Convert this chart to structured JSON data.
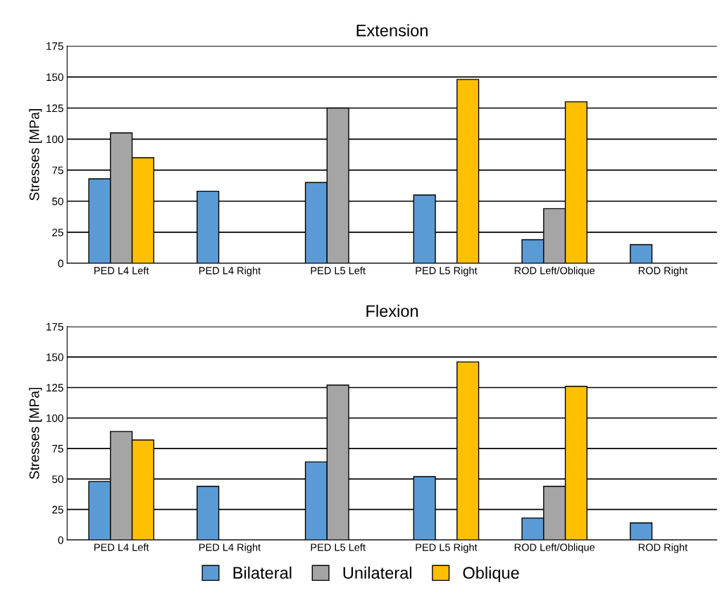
{
  "chart_data": [
    {
      "type": "bar",
      "title": "Extension",
      "ylabel": "Stresses [MPa]",
      "categories": [
        "PED L4 Left",
        "PED L4 Right",
        "PED L5 Left",
        "PED L5 Right",
        "ROD Left/Oblique",
        "ROD Right"
      ],
      "series": [
        {
          "name": "Bilateral",
          "color": "#5b9bd5",
          "values": [
            68,
            58,
            65,
            55,
            19,
            15
          ]
        },
        {
          "name": "Unilateral",
          "color": "#a5a5a5",
          "values": [
            105,
            null,
            125,
            null,
            44,
            null
          ]
        },
        {
          "name": "Oblique",
          "color": "#ffc000",
          "values": [
            85,
            null,
            null,
            148,
            130,
            null
          ]
        }
      ],
      "ylim": [
        0,
        175
      ],
      "yticks": [
        0,
        25,
        50,
        75,
        100,
        125,
        150,
        175
      ],
      "grid": "y",
      "legend": "bottom"
    },
    {
      "type": "bar",
      "title": "Flexion",
      "ylabel": "Stresses [MPa]",
      "categories": [
        "PED L4 Left",
        "PED L4 Right",
        "PED L5 Left",
        "PED L5 Right",
        "ROD Left/Oblique",
        "ROD Right"
      ],
      "series": [
        {
          "color": "#5b9bd5",
          "values": [
            48,
            44,
            64,
            52,
            18,
            14
          ]
        },
        {
          "color": "#a5a5a5",
          "values": [
            89,
            null,
            127,
            null,
            44,
            null
          ]
        },
        {
          "color": "#ffc000",
          "values": [
            82,
            null,
            null,
            146,
            126,
            null
          ]
        }
      ],
      "ylim": [
        0,
        175
      ],
      "yticks": [
        0,
        25,
        50,
        75,
        100,
        125,
        150,
        175
      ],
      "grid": "y"
    }
  ]
}
